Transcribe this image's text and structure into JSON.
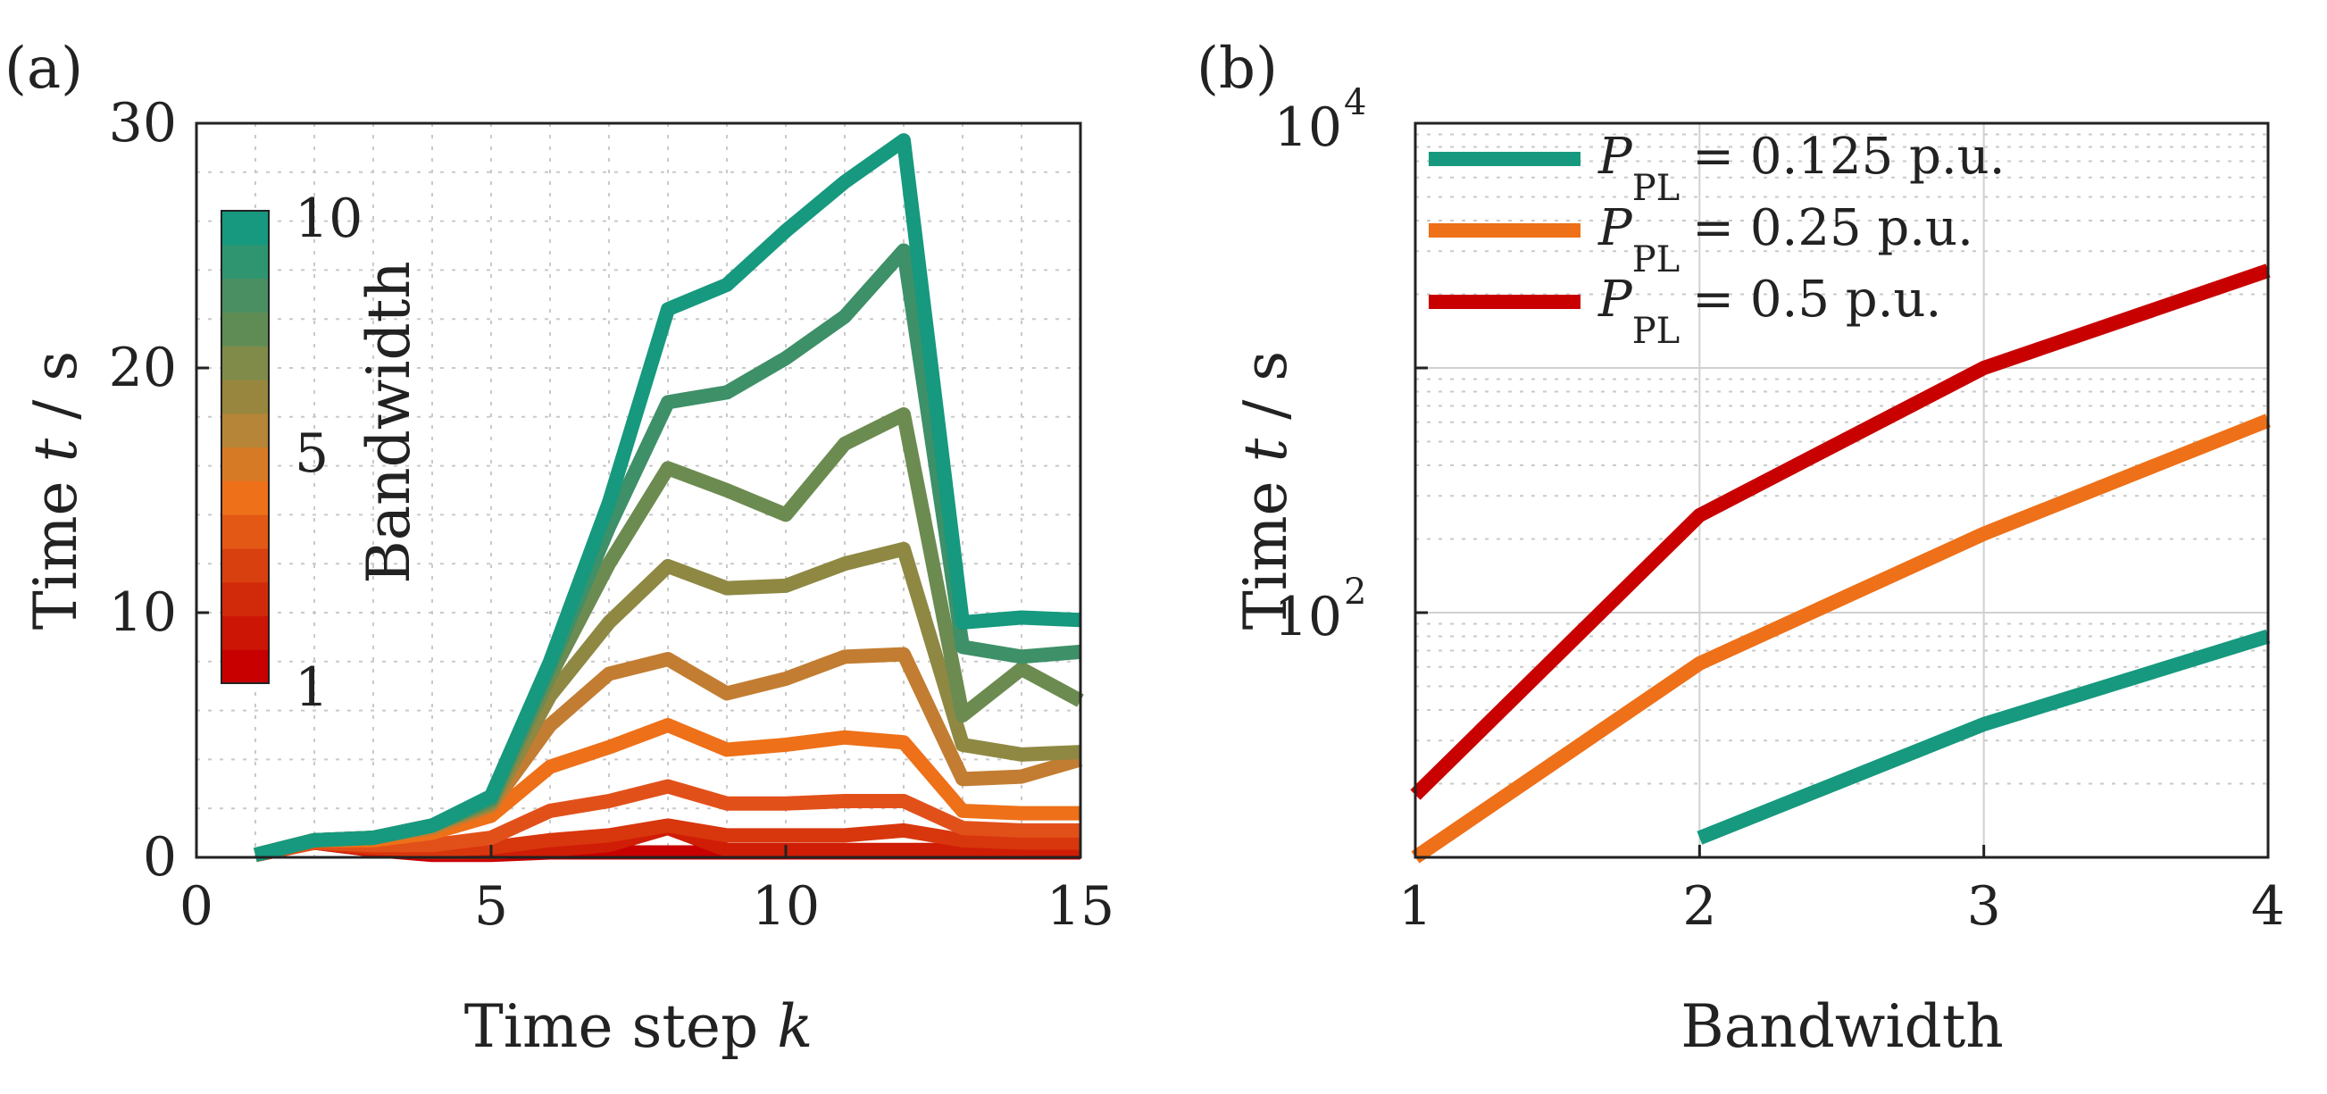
{
  "chart_data": [
    {
      "panel": "(a)",
      "type": "line",
      "xlabel": "Time step",
      "xlabel_var": "k",
      "ylabel": "Time",
      "ylabel_var": "t",
      "ylabel_unit": "/ s",
      "xlim": [
        0,
        15
      ],
      "ylim": [
        0,
        30
      ],
      "xticks": [
        0,
        5,
        10,
        15
      ],
      "yticks": [
        0,
        10,
        20,
        30
      ],
      "grid": true,
      "x": [
        1,
        2,
        3,
        4,
        5,
        6,
        7,
        8,
        9,
        10,
        11,
        12,
        13,
        14,
        15
      ],
      "colorbar": {
        "label": "Bandwidth",
        "ticks": [
          "10",
          "5",
          "1"
        ],
        "colors": [
          "#c80000",
          "#cc1505",
          "#d12a0a",
          "#d94010",
          "#e45815",
          "#ee7018",
          "#d77a25",
          "#b68538",
          "#98863f",
          "#808b4a",
          "#5f8c55",
          "#4a8f62",
          "#2f9470",
          "#16997e"
        ]
      },
      "series": [
        {
          "bandwidth": 1,
          "color": "#c80000",
          "values": [
            0.1,
            0.6,
            0.3,
            0.1,
            0.1,
            0.2,
            0.2,
            0.2,
            0.2,
            0.2,
            0.2,
            0.2,
            0.2,
            0.2,
            0.2
          ]
        },
        {
          "bandwidth": 2,
          "color": "#cf1d06",
          "values": [
            0.1,
            0.6,
            0.3,
            0.2,
            0.2,
            0.3,
            0.5,
            1.2,
            0.3,
            0.3,
            0.3,
            0.3,
            0.3,
            0.3,
            0.3
          ]
        },
        {
          "bandwidth": 3,
          "color": "#d8360d",
          "values": [
            0.1,
            0.6,
            0.4,
            0.3,
            0.4,
            0.7,
            0.9,
            1.3,
            0.9,
            0.9,
            0.9,
            1.1,
            0.7,
            0.6,
            0.6
          ]
        },
        {
          "bandwidth": 4,
          "color": "#e2501a",
          "values": [
            0.1,
            0.6,
            0.5,
            0.5,
            0.8,
            1.9,
            2.3,
            2.9,
            2.2,
            2.2,
            2.3,
            2.3,
            1.2,
            1.1,
            1.1
          ]
        },
        {
          "bandwidth": 5,
          "color": "#ee7018",
          "values": [
            0.1,
            0.7,
            0.7,
            1.0,
            1.7,
            3.7,
            4.5,
            5.4,
            4.4,
            4.6,
            4.9,
            4.7,
            1.9,
            1.8,
            1.8
          ]
        },
        {
          "bandwidth": 6,
          "color": "#c27d32",
          "values": [
            0.1,
            0.7,
            0.8,
            1.2,
            2.1,
            5.4,
            7.5,
            8.1,
            6.7,
            7.3,
            8.2,
            8.3,
            3.2,
            3.3,
            4.0
          ]
        },
        {
          "bandwidth": 7,
          "color": "#8e8843",
          "values": [
            0.1,
            0.7,
            0.8,
            1.3,
            2.2,
            6.6,
            9.6,
            11.9,
            11.0,
            11.1,
            12.0,
            12.6,
            4.6,
            4.2,
            4.3
          ]
        },
        {
          "bandwidth": 8,
          "color": "#6c8b50",
          "values": [
            0.1,
            0.7,
            0.8,
            1.3,
            2.3,
            7.4,
            12.0,
            15.9,
            15.0,
            14.0,
            16.9,
            18.1,
            5.8,
            7.7,
            6.4
          ]
        },
        {
          "bandwidth": 9,
          "color": "#3e9068",
          "values": [
            0.1,
            0.7,
            0.8,
            1.3,
            2.4,
            7.8,
            13.5,
            18.6,
            19.0,
            20.4,
            22.1,
            24.8,
            8.6,
            8.2,
            8.4
          ]
        },
        {
          "bandwidth": 10,
          "color": "#16997e",
          "values": [
            0.1,
            0.7,
            0.8,
            1.3,
            2.5,
            8.0,
            14.5,
            22.4,
            23.4,
            25.6,
            27.6,
            29.3,
            9.6,
            9.8,
            9.7
          ]
        }
      ]
    },
    {
      "panel": "(b)",
      "type": "line",
      "xlabel": "Bandwidth",
      "ylabel": "Time",
      "ylabel_var": "t",
      "ylabel_unit": "/ s",
      "yscale": "log",
      "xlim": [
        1,
        4
      ],
      "ylim": [
        10,
        10000
      ],
      "xticks": [
        "1",
        "2",
        "3",
        "4"
      ],
      "yticks": [
        {
          "base": "10",
          "exp": "2",
          "value": 100
        },
        {
          "base": "10",
          "exp": "4",
          "value": 10000
        }
      ],
      "grid": true,
      "legend_position": "top-left",
      "series": [
        {
          "name_var": "P",
          "name_sub": "PL",
          "name_rest": "= 0.125 p.u.",
          "color": "#16997e",
          "x": [
            2,
            3,
            4
          ],
          "values": [
            12,
            35,
            80
          ]
        },
        {
          "name_var": "P",
          "name_sub": "PL",
          "name_rest": "= 0.25 p.u.",
          "color": "#ee7018",
          "x": [
            1,
            2,
            3,
            4
          ],
          "values": [
            10,
            62,
            210,
            610
          ]
        },
        {
          "name_var": "P",
          "name_sub": "PL",
          "name_rest": "= 0.5 p.u.",
          "color": "#c80000",
          "x": [
            1,
            2,
            3,
            4
          ],
          "values": [
            18,
            250,
            1000,
            2500
          ]
        }
      ]
    }
  ]
}
